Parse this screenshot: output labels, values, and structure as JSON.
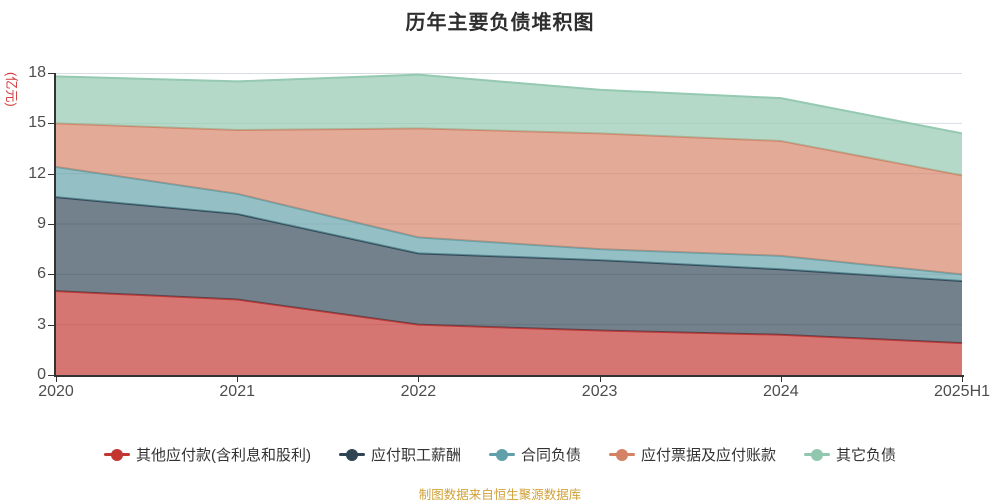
{
  "title": "历年主要负债堆积图",
  "y_axis": {
    "unit": "(亿元)",
    "unit_color": "#d23c3c",
    "ticks": [
      0,
      3,
      6,
      9,
      12,
      15,
      18
    ]
  },
  "footer": {
    "text": "制图数据来自恒生聚源数据库",
    "color": "#d1a139"
  },
  "chart_data": {
    "type": "area",
    "stacked": true,
    "title": "历年主要负债堆积图",
    "ylabel": "(亿元)",
    "xlabel": "",
    "categories": [
      "2020",
      "2021",
      "2022",
      "2023",
      "2024",
      "2025H1"
    ],
    "series": [
      {
        "name": "其他应付款(含利息和股利)",
        "color": "#c23531",
        "values": [
          5.0,
          4.5,
          3.0,
          2.65,
          2.4,
          1.9
        ]
      },
      {
        "name": "应付职工薪酬",
        "color": "#2f4554",
        "values": [
          5.6,
          5.1,
          4.25,
          4.2,
          3.9,
          3.7
        ]
      },
      {
        "name": "合同负债",
        "color": "#61a0a8",
        "values": [
          1.8,
          1.2,
          0.95,
          0.65,
          0.8,
          0.4
        ]
      },
      {
        "name": "应付票据及应付账款",
        "color": "#d48265",
        "values": [
          2.6,
          3.8,
          6.5,
          6.9,
          6.85,
          5.9
        ]
      },
      {
        "name": "其它负债",
        "color": "#91c7ae",
        "values": [
          2.8,
          2.9,
          3.2,
          2.6,
          2.55,
          2.5
        ]
      }
    ],
    "ylim": [
      0,
      18
    ],
    "ytick_step": 3,
    "grid": true,
    "grid_color": "#d9dde3",
    "area_opacity": 0.68,
    "legend_position": "bottom"
  }
}
